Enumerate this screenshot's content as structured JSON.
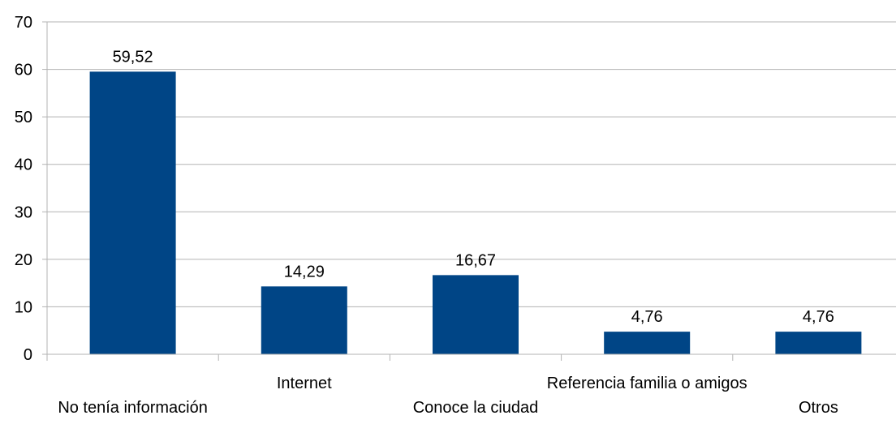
{
  "chart_data": {
    "type": "bar",
    "categories": [
      "No tenía información",
      "Internet",
      "Conoce la ciudad",
      "Referencia familia o amigos",
      "Otros"
    ],
    "values": [
      59.52,
      14.29,
      16.67,
      4.76,
      4.76
    ],
    "data_labels": [
      "59,52",
      "14,29",
      "16,67",
      "4,76",
      "4,76"
    ],
    "y_ticks": [
      "0",
      "10",
      "20",
      "30",
      "40",
      "50",
      "60",
      "70"
    ],
    "ylim": [
      0,
      70
    ],
    "grid": true,
    "legend": "none",
    "bar_color": "#004586",
    "grid_color": "#b3b3b3"
  }
}
